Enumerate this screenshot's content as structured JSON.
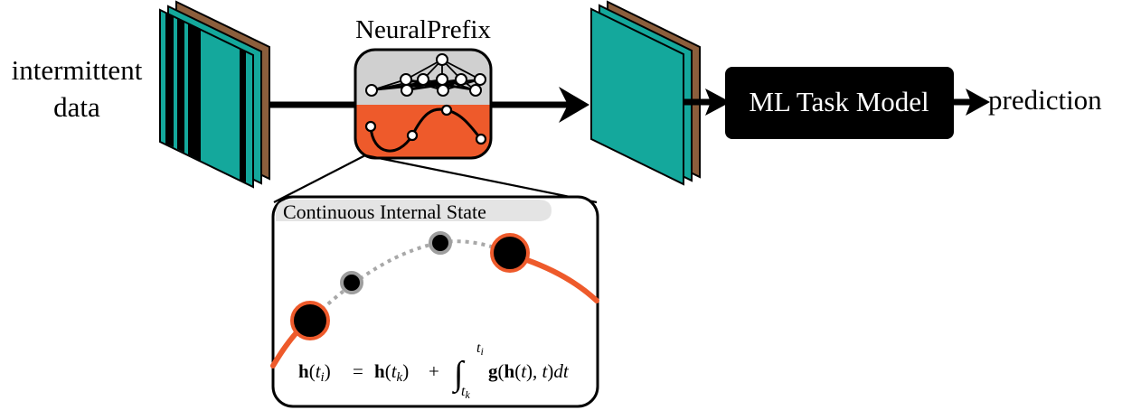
{
  "input_label_line1": "intermittent",
  "input_label_line2": "data",
  "prefix_title": "NeuralPrefix",
  "task_model_label": "ML Task Model",
  "output_label": "prediction",
  "inset_title": "Continuous Internal State",
  "equation": {
    "lhs": "h(t",
    "lhs_sub": "i",
    "lhs_close": ")",
    "eq": "=",
    "rhs1": "h(t",
    "rhs1_sub": "k",
    "rhs1_close": ")",
    "plus": "+",
    "integral": "∫",
    "upper_limit": "t",
    "upper_limit_sub": "i",
    "lower_limit": "t",
    "lower_limit_sub": "k",
    "integrand": "g(h(t), t)dt"
  },
  "colors": {
    "teal": "#14a89c",
    "brown": "#8b5e3c",
    "orange": "#ee5a2b",
    "gray_box": "#d0d0d0",
    "black": "#000000",
    "dot_gray": "#9e9e9e"
  }
}
